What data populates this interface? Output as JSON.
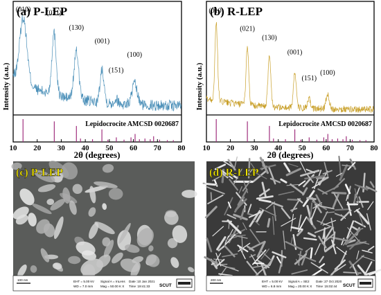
{
  "chart_data": [
    {
      "type": "line",
      "title": "(a) P-LEP",
      "ylabel": "Intensity (a.u.)",
      "xlabel": "2θ (degrees)",
      "xlim": [
        10,
        80
      ],
      "xticks": [
        10,
        20,
        30,
        40,
        50,
        60,
        70,
        80
      ],
      "color": "#4a8fb8",
      "peaks": [
        {
          "label": "(010)",
          "x": 14.2,
          "height": 0.58,
          "width": 1.5
        },
        {
          "label": "(021)",
          "x": 27.0,
          "height": 0.55,
          "width": 0.9
        },
        {
          "label": "(130)",
          "x": 36.3,
          "height": 0.42,
          "width": 1.0
        },
        {
          "label": "(001)",
          "x": 47.0,
          "height": 0.3,
          "width": 0.8
        },
        {
          "label": "(151)",
          "x": 52.8,
          "height": 0.04,
          "width": 0.8
        },
        {
          "label": "(100)",
          "x": 60.5,
          "height": 0.18,
          "width": 1.1
        }
      ],
      "reference": {
        "label": "Lepidocrocite AMCSD 0020687",
        "color": "#a0307e",
        "lines": [
          {
            "x": 14.1,
            "h": 1.0
          },
          {
            "x": 27.1,
            "h": 0.9
          },
          {
            "x": 36.3,
            "h": 0.7
          },
          {
            "x": 38.0,
            "h": 0.15
          },
          {
            "x": 43.0,
            "h": 0.12
          },
          {
            "x": 46.9,
            "h": 0.55
          },
          {
            "x": 49.4,
            "h": 0.1
          },
          {
            "x": 52.9,
            "h": 0.2
          },
          {
            "x": 56.1,
            "h": 0.1
          },
          {
            "x": 59.0,
            "h": 0.2
          },
          {
            "x": 60.7,
            "h": 0.35
          },
          {
            "x": 62.5,
            "h": 0.12
          },
          {
            "x": 64.8,
            "h": 0.15
          },
          {
            "x": 67.0,
            "h": 0.12
          },
          {
            "x": 68.4,
            "h": 0.25
          },
          {
            "x": 70.9,
            "h": 0.1
          },
          {
            "x": 74.1,
            "h": 0.08
          },
          {
            "x": 76.6,
            "h": 0.08
          }
        ]
      }
    },
    {
      "type": "line",
      "title": "(b) R-LEP",
      "ylabel": "Intensity (a.u.)",
      "xlabel": "2θ (degrees)",
      "xlim": [
        10,
        80
      ],
      "xticks": [
        10,
        20,
        30,
        40,
        50,
        60,
        70,
        80
      ],
      "color": "#c9a02a",
      "peaks": [
        {
          "label": "(010)",
          "x": 14.1,
          "height": 0.68,
          "width": 0.55
        },
        {
          "label": "(021)",
          "x": 27.1,
          "height": 0.52,
          "width": 0.55
        },
        {
          "label": "(130)",
          "x": 36.3,
          "height": 0.44,
          "width": 0.6
        },
        {
          "label": "(001)",
          "x": 46.9,
          "height": 0.31,
          "width": 0.6
        },
        {
          "label": "(151)",
          "x": 52.9,
          "height": 0.08,
          "width": 0.6
        },
        {
          "label": "(100)",
          "x": 60.6,
          "height": 0.13,
          "width": 0.7
        }
      ],
      "reference": {
        "label": "Lepidocrocite AMCSD 0020687",
        "color": "#a0307e",
        "lines": [
          {
            "x": 14.1,
            "h": 1.0
          },
          {
            "x": 27.1,
            "h": 0.9
          },
          {
            "x": 36.3,
            "h": 0.7
          },
          {
            "x": 38.0,
            "h": 0.15
          },
          {
            "x": 43.0,
            "h": 0.12
          },
          {
            "x": 46.9,
            "h": 0.55
          },
          {
            "x": 49.4,
            "h": 0.1
          },
          {
            "x": 52.9,
            "h": 0.2
          },
          {
            "x": 56.1,
            "h": 0.1
          },
          {
            "x": 59.0,
            "h": 0.2
          },
          {
            "x": 60.7,
            "h": 0.35
          },
          {
            "x": 62.5,
            "h": 0.12
          },
          {
            "x": 64.8,
            "h": 0.15
          },
          {
            "x": 67.0,
            "h": 0.12
          },
          {
            "x": 68.4,
            "h": 0.25
          },
          {
            "x": 70.9,
            "h": 0.1
          },
          {
            "x": 74.1,
            "h": 0.08
          },
          {
            "x": 76.6,
            "h": 0.08
          }
        ]
      }
    }
  ],
  "sem_images": [
    {
      "label": "(c) P-LEP",
      "scale_bar": "100 nm",
      "info_left": [
        "EHT = 5.00 kV",
        "WD = 7.0 mm"
      ],
      "info_mid": [
        "Signal A = InLens",
        "Mag = 50.00 K X"
      ],
      "info_right": [
        "Date :10 Jan 2021",
        "Time :19:41:33"
      ],
      "brand": "SCUT"
    },
    {
      "label": "(d) R-LEP",
      "scale_bar": "200 nm",
      "info_left": [
        "EHT = 5.00 kV",
        "WD = 6.8 mm"
      ],
      "info_mid": [
        "Signal A = SE2",
        "Mag = 20.00 K X"
      ],
      "info_right": [
        "Date :27 Oct 2020",
        "Time :15:02:44"
      ],
      "brand": "SCUT"
    }
  ]
}
